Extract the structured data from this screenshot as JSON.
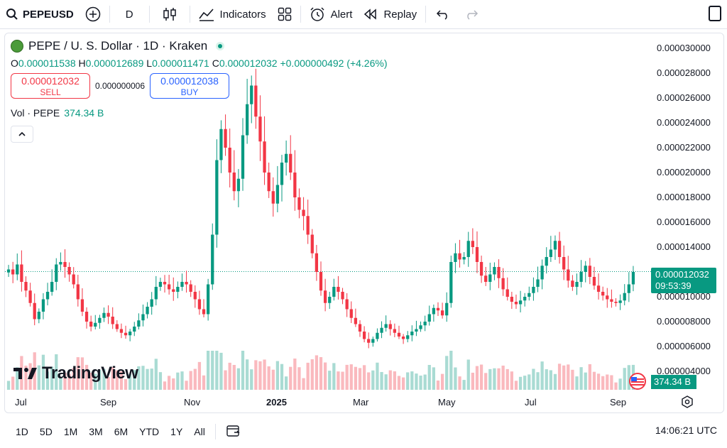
{
  "toolbar": {
    "symbol": "PEPEUSD",
    "interval": "D",
    "indicators_label": "Indicators",
    "alert_label": "Alert",
    "replay_label": "Replay"
  },
  "legend": {
    "title": "PEPE / U. S. Dollar · 1D · Kraken",
    "open_key": "O",
    "open": "0.000011538",
    "high_key": "H",
    "high": "0.000012689",
    "low_key": "L",
    "low": "0.000011471",
    "close_key": "C",
    "close": "0.000012032",
    "change": "+0.000000492 (+4.26%)",
    "sell_price": "0.000012032",
    "sell_label": "SELL",
    "spread": "0.000000006",
    "buy_price": "0.000012038",
    "buy_label": "BUY",
    "volume_label": "Vol · PEPE",
    "volume_value": "374.34 B"
  },
  "watermark": "TradingView",
  "price_axis": {
    "ticks": [
      "0.000030000",
      "0.000028000",
      "0.000026000",
      "0.000024000",
      "0.000022000",
      "0.000020000",
      "0.000018000",
      "0.000016000",
      "0.000014000",
      "0.000012000",
      "0.000010000",
      "0.000008000",
      "0.000006000",
      "0.000004000"
    ],
    "current_price": "0.000012032",
    "countdown": "09:53:39",
    "volume_badge": "374.34 B"
  },
  "time_axis": {
    "labels": [
      "Jul",
      "Sep",
      "Nov",
      "2025",
      "Mar",
      "May",
      "Jul",
      "Sep"
    ]
  },
  "bottom_bar": {
    "ranges": [
      "1D",
      "5D",
      "1M",
      "3M",
      "6M",
      "YTD",
      "1Y",
      "All"
    ],
    "clock": "14:06:21 UTC"
  },
  "colors": {
    "up": "#089981",
    "down": "#f23645",
    "accent": "#2962ff"
  },
  "chart_data": {
    "type": "candlestick",
    "ylim": [
      4e-06,
      3e-05
    ],
    "series": [
      {
        "name": "PEPE / U. S. Dollar",
        "close": [
          1.22e-05,
          1.18e-05,
          1.26e-05,
          1.12e-05,
          1.05e-05,
          9.5e-06,
          8.2e-06,
          8.8e-06,
          9.8e-06,
          1.04e-05,
          1.12e-05,
          1.26e-05,
          1.28e-05,
          1.24e-05,
          1.18e-05,
          1.1e-05,
          9.8e-06,
          8.8e-06,
          8e-06,
          7.6e-06,
          7.9e-06,
          8.3e-06,
          8.7e-06,
          8.4e-06,
          7.8e-06,
          7.4e-06,
          7.1e-06,
          6.9e-06,
          7.2e-06,
          7.6e-06,
          8.1e-06,
          8.6e-06,
          9.2e-06,
          9.8e-06,
          1.08e-05,
          1.12e-05,
          1.1e-05,
          1.06e-05,
          1.04e-05,
          1.08e-05,
          1.12e-05,
          1.1e-05,
          1.04e-05,
          9.8e-06,
          9e-06,
          8.6e-06,
          1.1e-05,
          1.5e-05,
          2.1e-05,
          2.35e-05,
          2.2e-05,
          2e-05,
          1.85e-05,
          1.95e-05,
          2.3e-05,
          2.55e-05,
          2.7e-05,
          2.45e-05,
          2.25e-05,
          2e-05,
          1.85e-05,
          1.75e-05,
          1.9e-05,
          2.08e-05,
          2.15e-05,
          2e-05,
          1.8e-05,
          1.7e-05,
          1.65e-05,
          1.5e-05,
          1.35e-05,
          1.2e-05,
          1.05e-05,
          9.5e-06,
          1e-05,
          1.08e-05,
          1.04e-05,
          9.8e-06,
          9e-06,
          8.3e-06,
          7.8e-06,
          7.2e-06,
          6.6e-06,
          6.3e-06,
          6.6e-06,
          7.1e-06,
          7.5e-06,
          7.8e-06,
          7.4e-06,
          7.1e-06,
          6.8e-06,
          6.6e-06,
          6.9e-06,
          7.2e-06,
          7.4e-06,
          7.7e-06,
          8e-06,
          8.6e-06,
          9.1e-06,
          8.9e-06,
          8.5e-06,
          9.5e-06,
          1.28e-05,
          1.35e-05,
          1.3e-05,
          1.32e-05,
          1.45e-05,
          1.4e-05,
          1.28e-05,
          1.17e-05,
          1.12e-05,
          1.18e-05,
          1.24e-05,
          1.15e-05,
          1.06e-05,
          1e-05,
          9.6e-06,
          9.4e-06,
          9.7e-06,
          1e-05,
          1.03e-05,
          1.08e-05,
          1.14e-05,
          1.25e-05,
          1.32e-05,
          1.38e-05,
          1.45e-05,
          1.32e-05,
          1.22e-05,
          1.13e-05,
          1.08e-05,
          1.12e-05,
          1.2e-05,
          1.25e-05,
          1.16e-05,
          1.09e-05,
          1.04e-05,
          1.01e-05,
          9.8e-06,
          9.6e-06,
          9.5e-06,
          9.7e-06,
          1.03e-05,
          1.1e-05,
          1.2e-05
        ]
      }
    ]
  }
}
